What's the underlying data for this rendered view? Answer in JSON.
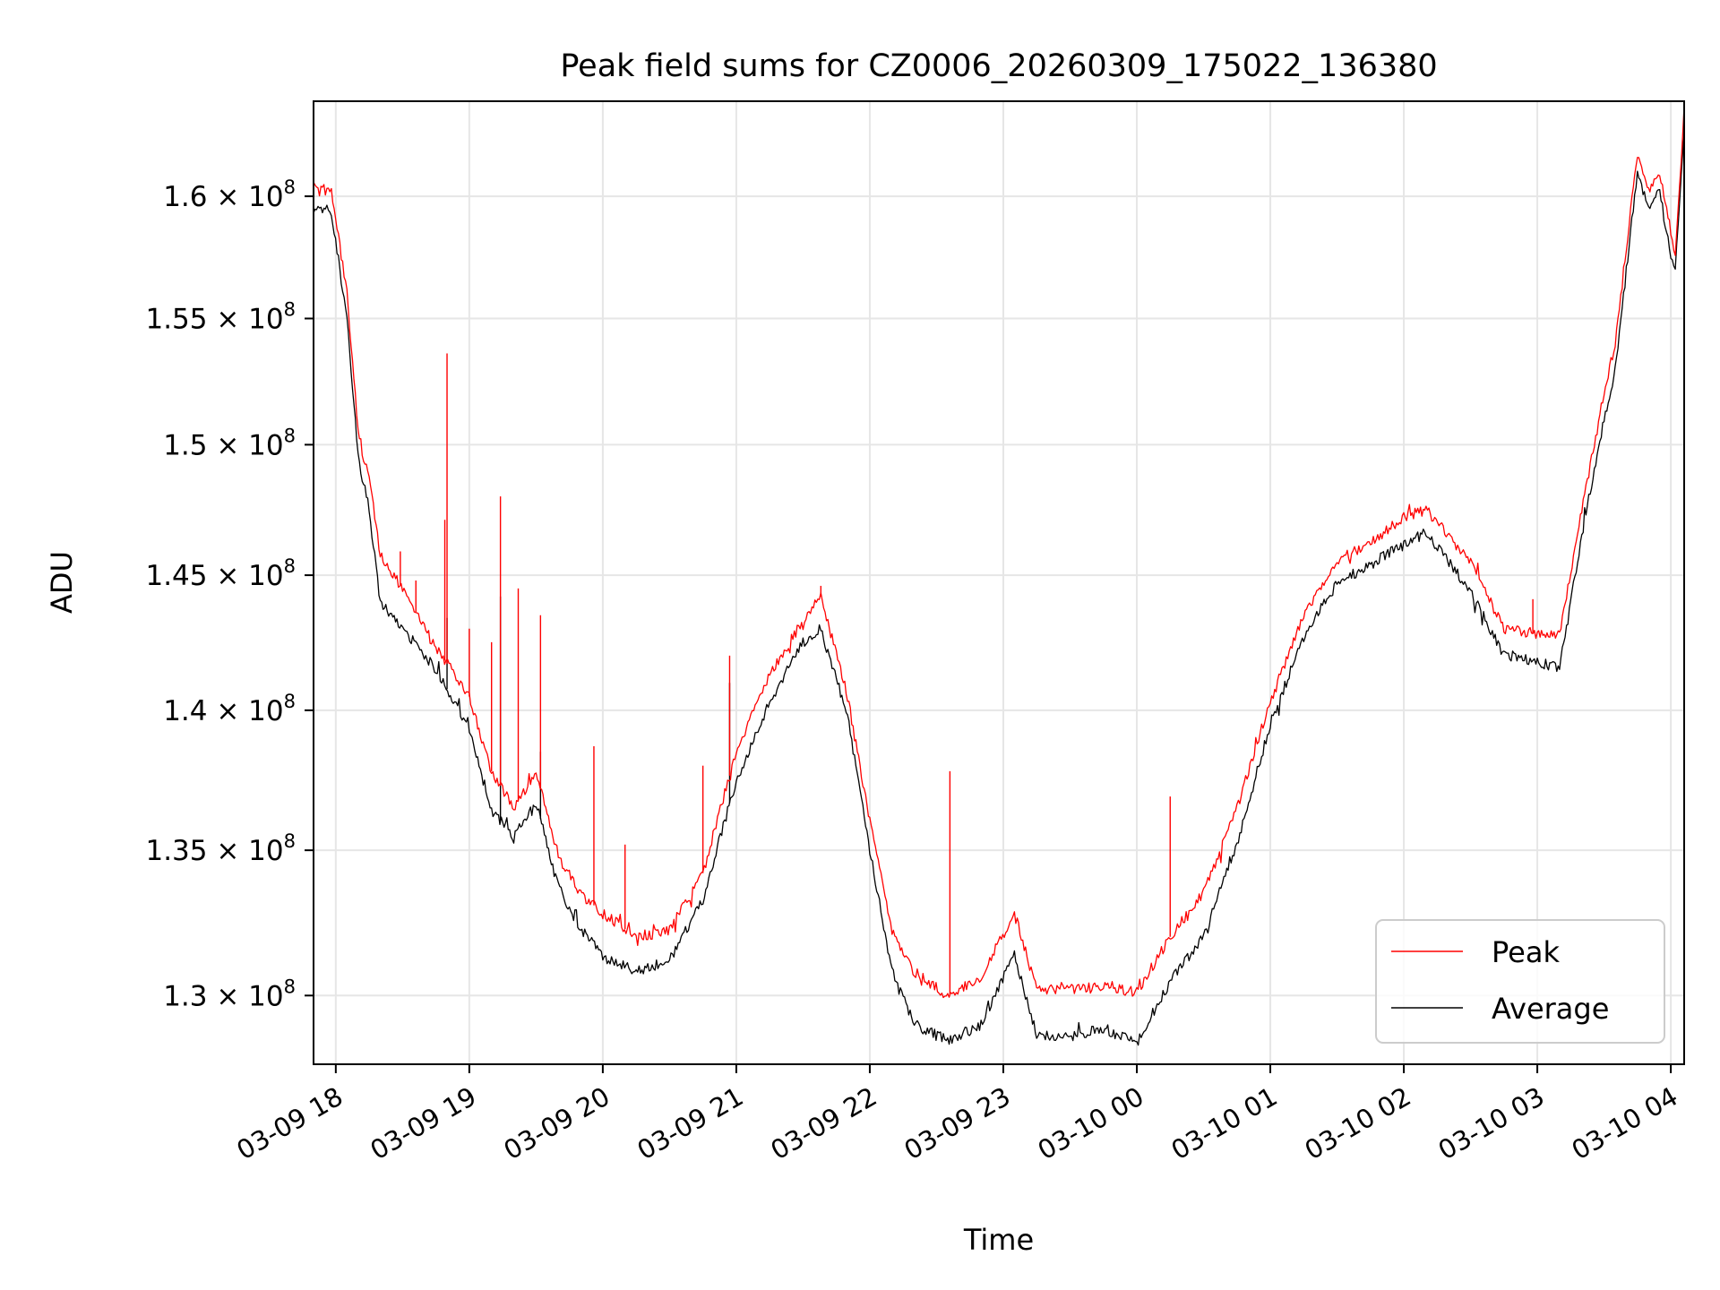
{
  "chart_data": {
    "type": "line",
    "title": "Peak field sums for CZ0006_20260309_175022_136380",
    "xlabel": "Time",
    "ylabel": "ADU",
    "x_ticks": [
      "03-09 18",
      "03-09 19",
      "03-09 20",
      "03-09 21",
      "03-09 22",
      "03-09 23",
      "03-10 00",
      "03-10 01",
      "03-10 02",
      "03-10 03",
      "03-10 04"
    ],
    "y_ticks": [
      {
        "value": 130000000,
        "mantissa": "1.3",
        "exponent": "8"
      },
      {
        "value": 135000000,
        "mantissa": "1.35",
        "exponent": "8"
      },
      {
        "value": 140000000,
        "mantissa": "1.4",
        "exponent": "8"
      },
      {
        "value": 145000000,
        "mantissa": "1.45",
        "exponent": "8"
      },
      {
        "value": 150000000,
        "mantissa": "1.5",
        "exponent": "8"
      },
      {
        "value": 155000000,
        "mantissa": "1.55",
        "exponent": "8"
      },
      {
        "value": 160000000,
        "mantissa": "1.6",
        "exponent": "8"
      }
    ],
    "x_range": [
      "2026-03-09 17:50",
      "2026-03-10 04:06"
    ],
    "y_range": [
      127700000,
      164000000
    ],
    "y_scale": "log",
    "grid": true,
    "legend_position": "lower right",
    "series": [
      {
        "name": "Peak",
        "color": "#ff0000",
        "points": [
          [
            "2026-03-09 17:50",
            160400000
          ],
          [
            "2026-03-09 17:58",
            160200000
          ],
          [
            "2026-03-09 18:05",
            156000000
          ],
          [
            "2026-03-09 18:10",
            150500000
          ],
          [
            "2026-03-09 18:15",
            148600000
          ],
          [
            "2026-03-09 18:20",
            145800000
          ],
          [
            "2026-03-09 18:30",
            144500000
          ],
          [
            "2026-03-09 18:45",
            142300000
          ],
          [
            "2026-03-09 19:00",
            140500000
          ],
          [
            "2026-03-09 19:10",
            137800000
          ],
          [
            "2026-03-09 19:20",
            136500000
          ],
          [
            "2026-03-09 19:30",
            137800000
          ],
          [
            "2026-03-09 19:40",
            134800000
          ],
          [
            "2026-03-09 19:50",
            133500000
          ],
          [
            "2026-03-09 20:00",
            132800000
          ],
          [
            "2026-03-09 20:15",
            132000000
          ],
          [
            "2026-03-09 20:30",
            132200000
          ],
          [
            "2026-03-09 20:45",
            134200000
          ],
          [
            "2026-03-09 21:00",
            138500000
          ],
          [
            "2026-03-09 21:15",
            141300000
          ],
          [
            "2026-03-09 21:30",
            143300000
          ],
          [
            "2026-03-09 21:38",
            144200000
          ],
          [
            "2026-03-09 21:50",
            140500000
          ],
          [
            "2026-03-09 22:00",
            136000000
          ],
          [
            "2026-03-09 22:10",
            132200000
          ],
          [
            "2026-03-09 22:20",
            130800000
          ],
          [
            "2026-03-09 22:35",
            130000000
          ],
          [
            "2026-03-09 22:50",
            130600000
          ],
          [
            "2026-03-09 23:05",
            132800000
          ],
          [
            "2026-03-09 23:15",
            130200000
          ],
          [
            "2026-03-09 23:30",
            130200000
          ],
          [
            "2026-03-09 23:45",
            130300000
          ],
          [
            "2026-03-10 00:00",
            130100000
          ],
          [
            "2026-03-10 00:15",
            132000000
          ],
          [
            "2026-03-10 00:30",
            133500000
          ],
          [
            "2026-03-10 00:45",
            136500000
          ],
          [
            "2026-03-10 01:00",
            140300000
          ],
          [
            "2026-03-10 01:15",
            143500000
          ],
          [
            "2026-03-10 01:30",
            145600000
          ],
          [
            "2026-03-10 01:45",
            146200000
          ],
          [
            "2026-03-10 02:00",
            147200000
          ],
          [
            "2026-03-10 02:10",
            147500000
          ],
          [
            "2026-03-10 02:30",
            145500000
          ],
          [
            "2026-03-10 02:45",
            143000000
          ],
          [
            "2026-03-10 03:00",
            142800000
          ],
          [
            "2026-03-10 03:10",
            142800000
          ],
          [
            "2026-03-10 03:20",
            147500000
          ],
          [
            "2026-03-10 03:30",
            152000000
          ],
          [
            "2026-03-10 03:35",
            154000000
          ],
          [
            "2026-03-10 03:45",
            161800000
          ],
          [
            "2026-03-10 03:50",
            160200000
          ],
          [
            "2026-03-10 03:55",
            161000000
          ],
          [
            "2026-03-10 04:00",
            158500000
          ],
          [
            "2026-03-10 04:02",
            157500000
          ],
          [
            "2026-03-10 04:06",
            163800000
          ]
        ],
        "spikes": [
          [
            "2026-03-09 18:50",
            153600000
          ],
          [
            "2026-03-09 18:49",
            147100000
          ],
          [
            "2026-03-09 19:14",
            148000000
          ],
          [
            "2026-03-09 19:22",
            144500000
          ],
          [
            "2026-03-09 19:32",
            143500000
          ],
          [
            "2026-03-09 19:00",
            143000000
          ],
          [
            "2026-03-09 19:10",
            142500000
          ],
          [
            "2026-03-09 18:29",
            145900000
          ],
          [
            "2026-03-09 18:36",
            144800000
          ],
          [
            "2026-03-09 19:56",
            138700000
          ],
          [
            "2026-03-09 20:10",
            135200000
          ],
          [
            "2026-03-09 20:45",
            138000000
          ],
          [
            "2026-03-09 20:57",
            142000000
          ],
          [
            "2026-03-09 22:36",
            137800000
          ],
          [
            "2026-03-10 00:15",
            136900000
          ],
          [
            "2026-03-10 02:58",
            144100000
          ],
          [
            "2026-03-09 21:38",
            144600000
          ]
        ]
      },
      {
        "name": "Average",
        "color": "#000000",
        "points": [
          [
            "2026-03-09 17:50",
            159500000
          ],
          [
            "2026-03-09 17:58",
            159400000
          ],
          [
            "2026-03-09 18:05",
            155000000
          ],
          [
            "2026-03-09 18:10",
            149500000
          ],
          [
            "2026-03-09 18:15",
            147500000
          ],
          [
            "2026-03-09 18:20",
            144000000
          ],
          [
            "2026-03-09 18:30",
            143000000
          ],
          [
            "2026-03-09 18:45",
            141500000
          ],
          [
            "2026-03-09 19:00",
            139300000
          ],
          [
            "2026-03-09 19:10",
            136400000
          ],
          [
            "2026-03-09 19:20",
            135500000
          ],
          [
            "2026-03-09 19:30",
            136700000
          ],
          [
            "2026-03-09 19:40",
            133700000
          ],
          [
            "2026-03-09 19:50",
            132300000
          ],
          [
            "2026-03-09 20:00",
            131300000
          ],
          [
            "2026-03-09 20:15",
            130800000
          ],
          [
            "2026-03-09 20:30",
            131200000
          ],
          [
            "2026-03-09 20:45",
            133300000
          ],
          [
            "2026-03-09 21:00",
            137500000
          ],
          [
            "2026-03-09 21:15",
            140300000
          ],
          [
            "2026-03-09 21:30",
            142500000
          ],
          [
            "2026-03-09 21:38",
            143000000
          ],
          [
            "2026-03-09 21:50",
            139800000
          ],
          [
            "2026-03-09 22:00",
            135000000
          ],
          [
            "2026-03-09 22:10",
            130800000
          ],
          [
            "2026-03-09 22:20",
            129000000
          ],
          [
            "2026-03-09 22:35",
            128500000
          ],
          [
            "2026-03-09 22:50",
            129000000
          ],
          [
            "2026-03-09 23:05",
            131400000
          ],
          [
            "2026-03-09 23:15",
            128700000
          ],
          [
            "2026-03-09 23:30",
            128600000
          ],
          [
            "2026-03-09 23:45",
            128900000
          ],
          [
            "2026-03-10 00:00",
            128400000
          ],
          [
            "2026-03-10 00:15",
            130500000
          ],
          [
            "2026-03-10 00:30",
            132000000
          ],
          [
            "2026-03-10 00:45",
            135200000
          ],
          [
            "2026-03-10 01:00",
            139500000
          ],
          [
            "2026-03-10 01:15",
            142700000
          ],
          [
            "2026-03-10 01:30",
            144700000
          ],
          [
            "2026-03-10 01:45",
            145400000
          ],
          [
            "2026-03-10 02:00",
            146200000
          ],
          [
            "2026-03-10 02:10",
            146600000
          ],
          [
            "2026-03-10 02:30",
            144400000
          ],
          [
            "2026-03-10 02:45",
            142000000
          ],
          [
            "2026-03-10 03:00",
            141800000
          ],
          [
            "2026-03-10 03:10",
            141500000
          ],
          [
            "2026-03-10 03:20",
            146500000
          ],
          [
            "2026-03-10 03:30",
            151000000
          ],
          [
            "2026-03-10 03:35",
            153000000
          ],
          [
            "2026-03-10 03:45",
            161000000
          ],
          [
            "2026-03-10 03:50",
            159500000
          ],
          [
            "2026-03-10 03:55",
            160200000
          ],
          [
            "2026-03-10 04:00",
            157500000
          ],
          [
            "2026-03-10 04:02",
            156900000
          ],
          [
            "2026-03-10 04:06",
            162800000
          ]
        ],
        "spikes": [
          [
            "2026-03-09 19:14",
            144200000
          ],
          [
            "2026-03-09 18:50",
            143400000
          ],
          [
            "2026-03-09 20:57",
            141000000
          ],
          [
            "2026-03-09 19:32",
            138500000
          ]
        ]
      }
    ]
  }
}
